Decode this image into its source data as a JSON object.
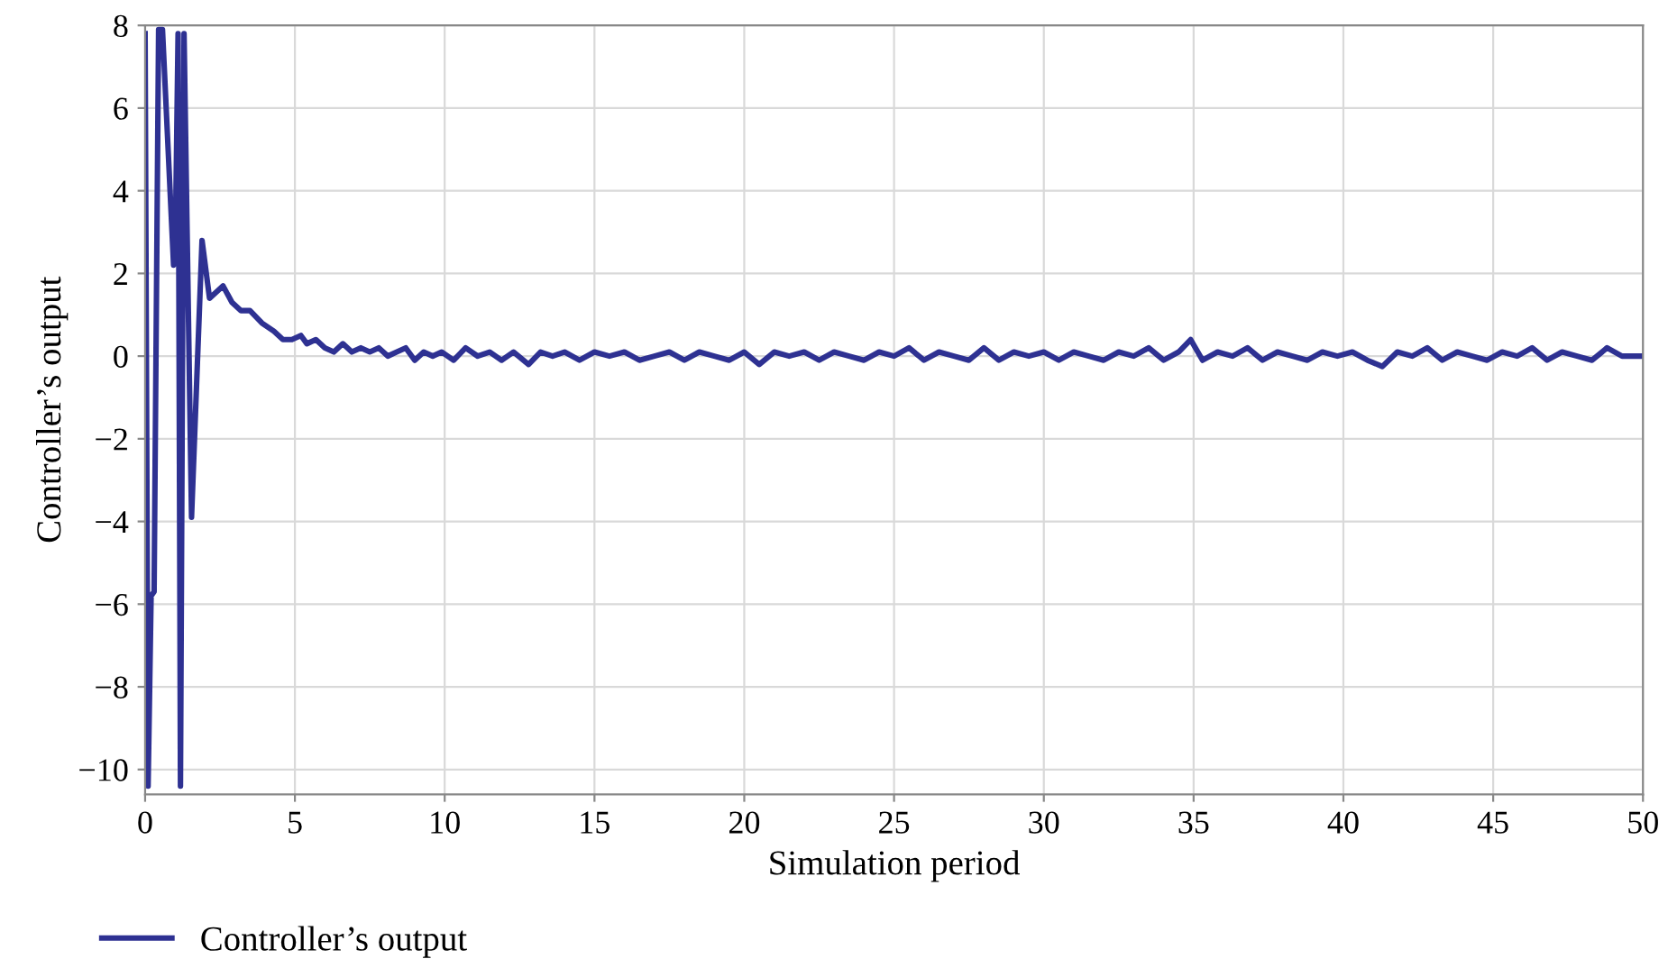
{
  "chart_data": {
    "type": "line",
    "xlabel": "Simulation period",
    "ylabel": "Controller’s output",
    "xlim": [
      0,
      50
    ],
    "ylim": [
      -10.6,
      8
    ],
    "xticks": [
      0,
      5,
      10,
      15,
      20,
      25,
      30,
      35,
      40,
      45,
      50
    ],
    "yticks": [
      {
        "value": -10,
        "label": "−10"
      },
      {
        "value": -8,
        "label": "−8"
      },
      {
        "value": -6,
        "label": "−6"
      },
      {
        "value": -4,
        "label": "−4"
      },
      {
        "value": -2,
        "label": "−2"
      },
      0,
      2,
      4,
      6,
      8
    ],
    "grid": true,
    "legend": "bottom left",
    "line_style": "solid",
    "marker": "none",
    "series": [
      {
        "name": "Controller’s output",
        "color": "#2e3192",
        "x": [
          0,
          0.1,
          0.2,
          0.3,
          0.45,
          0.58,
          0.95,
          1.0,
          1.1,
          1.18,
          1.3,
          1.55,
          1.9,
          2.15,
          2.6,
          2.9,
          3.2,
          3.5,
          3.9,
          4.3,
          4.6,
          4.9,
          5.2,
          5.4,
          5.7,
          6.0,
          6.3,
          6.6,
          6.9,
          7.2,
          7.5,
          7.8,
          8.1,
          8.4,
          8.7,
          9.0,
          9.3,
          9.6,
          9.9,
          10.3,
          10.7,
          11.1,
          11.5,
          11.9,
          12.3,
          12.8,
          13.2,
          13.6,
          14.0,
          14.5,
          15.0,
          15.5,
          16.0,
          16.5,
          17.0,
          17.5,
          18.0,
          18.5,
          19.0,
          19.5,
          20.0,
          20.5,
          21.0,
          21.5,
          22.0,
          22.5,
          23.0,
          23.5,
          24.0,
          24.5,
          25.0,
          25.5,
          26.0,
          26.5,
          27.0,
          27.5,
          28.0,
          28.5,
          29.0,
          29.5,
          30.0,
          30.5,
          31.0,
          31.5,
          32.0,
          32.5,
          33.0,
          33.5,
          34.0,
          34.5,
          34.9,
          35.3,
          35.8,
          36.3,
          36.8,
          37.3,
          37.8,
          38.3,
          38.8,
          39.3,
          39.8,
          40.3,
          40.8,
          41.3,
          41.8,
          42.3,
          42.8,
          43.3,
          43.8,
          44.3,
          44.8,
          45.3,
          45.8,
          46.3,
          46.8,
          47.3,
          47.8,
          48.3,
          48.8,
          49.3,
          50
        ],
        "values": [
          7.8,
          -10.4,
          -5.8,
          -5.7,
          7.9,
          7.9,
          2.2,
          2.3,
          7.8,
          -10.4,
          7.8,
          -3.9,
          2.8,
          1.4,
          1.7,
          1.3,
          1.1,
          1.1,
          0.8,
          0.6,
          0.4,
          0.4,
          0.5,
          0.3,
          0.4,
          0.2,
          0.1,
          0.3,
          0.1,
          0.2,
          0.1,
          0.2,
          0.0,
          0.1,
          0.2,
          -0.1,
          0.1,
          0.0,
          0.1,
          -0.1,
          0.2,
          0.0,
          0.1,
          -0.1,
          0.1,
          -0.2,
          0.1,
          0.0,
          0.1,
          -0.1,
          0.1,
          0.0,
          0.1,
          -0.1,
          0.0,
          0.1,
          -0.1,
          0.1,
          0.0,
          -0.1,
          0.1,
          -0.2,
          0.1,
          0.0,
          0.1,
          -0.1,
          0.1,
          0.0,
          -0.1,
          0.1,
          0.0,
          0.2,
          -0.1,
          0.1,
          0.0,
          -0.1,
          0.2,
          -0.1,
          0.1,
          0.0,
          0.1,
          -0.1,
          0.1,
          0.0,
          -0.1,
          0.1,
          0.0,
          0.2,
          -0.1,
          0.1,
          0.4,
          -0.1,
          0.1,
          0.0,
          0.2,
          -0.1,
          0.1,
          0.0,
          -0.1,
          0.1,
          0.0,
          0.1,
          -0.1,
          -0.25,
          0.1,
          0.0,
          0.2,
          -0.1,
          0.1,
          0.0,
          -0.1,
          0.1,
          0.0,
          0.2,
          -0.1,
          0.1,
          0.0,
          -0.1,
          0.2,
          0.0,
          0.0
        ]
      }
    ]
  }
}
